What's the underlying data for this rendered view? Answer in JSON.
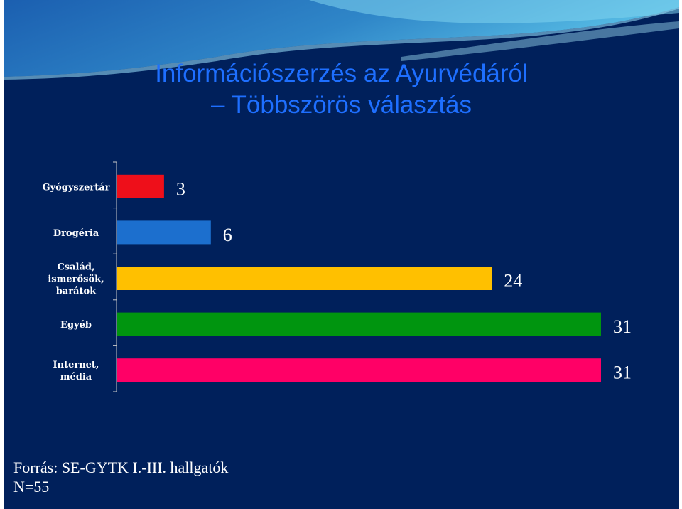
{
  "title": {
    "line1": "Információszerzés az Ayurvédáról",
    "line2": "– Többszörös választás"
  },
  "chart_data": {
    "type": "bar",
    "orientation": "horizontal",
    "categories": [
      [
        "Gyógyszertár"
      ],
      [
        "Drogéria"
      ],
      [
        "Család,",
        "ismerősök,",
        "barátok"
      ],
      [
        "Egyéb"
      ],
      [
        "Internet,",
        "média"
      ]
    ],
    "values": [
      3,
      6,
      24,
      31,
      31
    ],
    "data_labels": [
      "3",
      "6",
      "24",
      "31",
      "31"
    ],
    "colors": [
      "#ee0f1a",
      "#1c6fce",
      "#ffc000",
      "#00950f",
      "#ff0066"
    ],
    "xlim": [
      0,
      31
    ],
    "grid": false,
    "legend": "none"
  },
  "source": {
    "line1": "Forrás: SE-GYTK I.-III. hallgatók",
    "line2": "N=55"
  }
}
